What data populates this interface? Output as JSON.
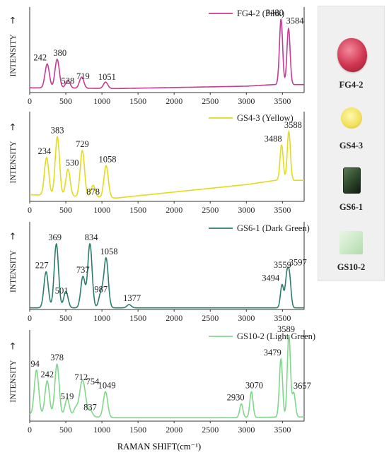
{
  "x_axis_label": "RAMAN SHIFT(cm⁻¹)",
  "y_axis_label": "INTENSITY",
  "y_axis_arrow": "→",
  "gems": [
    {
      "label": "FG4-2",
      "color": "#d0354f",
      "shape": "oval"
    },
    {
      "label": "GS4-3",
      "color": "#f2e05a",
      "shape": "round"
    },
    {
      "label": "GS6-1",
      "color": "#2f4a2e",
      "shape": "emerald-cut"
    },
    {
      "label": "GS10-2",
      "color": "#c9e8c4",
      "shape": "square"
    }
  ],
  "chart_data": [
    {
      "type": "line",
      "legend": "FG4-2 (Pink)",
      "color": "#c63b93",
      "xlim": [
        0,
        3800
      ],
      "xticks": [
        0,
        500,
        1000,
        1500,
        2000,
        2500,
        3000,
        3500
      ],
      "baseline": [
        [
          0,
          0.06
        ],
        [
          1200,
          0.05
        ],
        [
          3000,
          0.08
        ],
        [
          3380,
          0.1
        ],
        [
          3800,
          0.1
        ]
      ],
      "peaks": [
        {
          "x": 242,
          "height": 0.3,
          "label": "242"
        },
        {
          "x": 380,
          "height": 0.36,
          "label": "380"
        },
        {
          "x": 528,
          "height": 0.1,
          "label": "528"
        },
        {
          "x": 719,
          "height": 0.14,
          "label": "719"
        },
        {
          "x": 1051,
          "height": 0.08,
          "label": "1051"
        },
        {
          "x": 3480,
          "height": 0.82,
          "label": "3480"
        },
        {
          "x": 3584,
          "height": 0.7,
          "label": "3584"
        }
      ]
    },
    {
      "type": "line",
      "legend": "GS4-3 (Yellow)",
      "color": "#e3dc1a",
      "xlim": [
        0,
        3800
      ],
      "xticks": [
        0,
        500,
        1000,
        1500,
        2000,
        2500,
        3000,
        3500
      ],
      "baseline": [
        [
          0,
          0.08
        ],
        [
          1200,
          0.04
        ],
        [
          3000,
          0.2
        ],
        [
          3400,
          0.25
        ],
        [
          3800,
          0.25
        ]
      ],
      "peaks": [
        {
          "x": 234,
          "height": 0.45,
          "label": "234"
        },
        {
          "x": 383,
          "height": 0.7,
          "label": "383"
        },
        {
          "x": 530,
          "height": 0.32,
          "label": "530"
        },
        {
          "x": 729,
          "height": 0.55,
          "label": "729"
        },
        {
          "x": 878,
          "height": 0.14,
          "label": "878"
        },
        {
          "x": 1058,
          "height": 0.38,
          "label": "1058"
        },
        {
          "x": 3488,
          "height": 0.42,
          "label": "3488"
        },
        {
          "x": 3588,
          "height": 0.58,
          "label": "3588"
        }
      ]
    },
    {
      "type": "line",
      "legend": "GS6-1 (Dark Green)",
      "color": "#2d7d6d",
      "xlim": [
        0,
        3800
      ],
      "xticks": [
        0,
        500,
        1000,
        1500,
        2000,
        2500,
        3000,
        3500
      ],
      "baseline": [
        [
          0,
          0.02
        ],
        [
          3800,
          0.02
        ]
      ],
      "peaks": [
        {
          "x": 227,
          "height": 0.44,
          "label": "227"
        },
        {
          "x": 369,
          "height": 0.78,
          "label": "369"
        },
        {
          "x": 501,
          "height": 0.2,
          "label": "501"
        },
        {
          "x": 737,
          "height": 0.38,
          "label": "737"
        },
        {
          "x": 834,
          "height": 0.78,
          "label": "834"
        },
        {
          "x": 987,
          "height": 0.18,
          "label": "987"
        },
        {
          "x": 1058,
          "height": 0.6,
          "label": "1058"
        },
        {
          "x": 1377,
          "height": 0.04,
          "label": "1377"
        },
        {
          "x": 3494,
          "height": 0.28,
          "label": "3494"
        },
        {
          "x": 3559,
          "height": 0.36,
          "label": "3559"
        },
        {
          "x": 3597,
          "height": 0.36,
          "label": "3597"
        }
      ]
    },
    {
      "type": "line",
      "legend": "GS10-2 (Light Green)",
      "color": "#7fd88a",
      "xlim": [
        0,
        3800
      ],
      "xticks": [
        0,
        500,
        1000,
        1500,
        2000,
        2500,
        3000,
        3500
      ],
      "baseline": [
        [
          0,
          0.08
        ],
        [
          1200,
          0.04
        ],
        [
          2600,
          0.04
        ],
        [
          3800,
          0.05
        ]
      ],
      "peaks": [
        {
          "x": 94,
          "height": 0.52,
          "label": "94"
        },
        {
          "x": 242,
          "height": 0.4,
          "label": "242"
        },
        {
          "x": 378,
          "height": 0.6,
          "label": "378"
        },
        {
          "x": 519,
          "height": 0.2,
          "label": "519"
        },
        {
          "x": 640,
          "height": 0.1,
          "label": ""
        },
        {
          "x": 712,
          "height": 0.28,
          "label": "712"
        },
        {
          "x": 754,
          "height": 0.26,
          "label": "754"
        },
        {
          "x": 837,
          "height": 0.08,
          "label": "837"
        },
        {
          "x": 1049,
          "height": 0.3,
          "label": "1049"
        },
        {
          "x": 2930,
          "height": 0.16,
          "label": "2930"
        },
        {
          "x": 3070,
          "height": 0.3,
          "label": "3070"
        },
        {
          "x": 3479,
          "height": 0.68,
          "label": "3479"
        },
        {
          "x": 3589,
          "height": 0.96,
          "label": "3589"
        },
        {
          "x": 3657,
          "height": 0.28,
          "label": "3657"
        }
      ]
    }
  ]
}
